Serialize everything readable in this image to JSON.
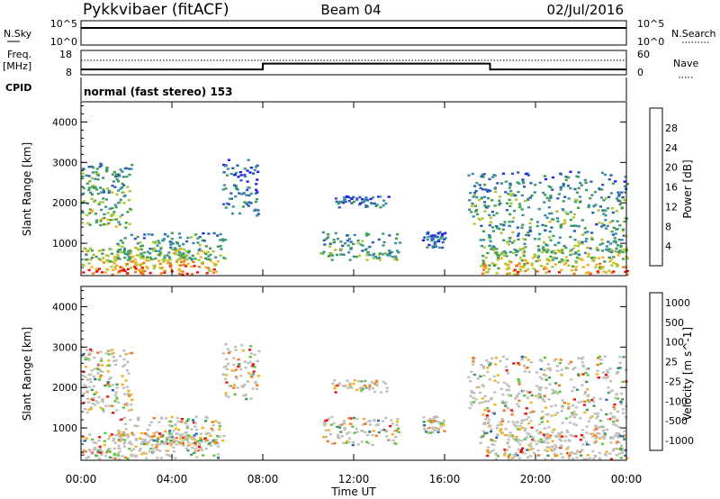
{
  "header": {
    "station": "Pykkvibaer (fitACF)",
    "beam": "Beam 04",
    "date": "02/Jul/2016"
  },
  "status_panels": {
    "nsky_label": "N.Sky",
    "nsky_ticks": [
      "10^5",
      "10^0"
    ],
    "nsearch_label": "N.Search",
    "nsearch_ticks": [
      "10^5",
      "10^0"
    ],
    "freq_label": "Freq.",
    "freq_unit": "[MHz]",
    "freq_ticks": [
      "18",
      "8"
    ],
    "nave_label": "Nave",
    "nave_ticks": [
      "60",
      "0"
    ],
    "cpid_label": "CPID",
    "cpid_text": "normal (fast stereo) 153",
    "freq_steps": [
      {
        "from": 0,
        "to": 8,
        "value": 10.2
      },
      {
        "from": 8,
        "to": 18,
        "value": 12.6
      },
      {
        "from": 18,
        "to": 24,
        "value": 10.2
      }
    ]
  },
  "chart_data": [
    {
      "type": "heatmap",
      "panel": "power",
      "xlabel": "Time UT",
      "ylabel": "Slant Range [km]",
      "xlim": [
        0,
        24
      ],
      "ylim": [
        200,
        4500
      ],
      "x_ticks": [
        "00:00",
        "04:00",
        "08:00",
        "12:00",
        "16:00",
        "20:00",
        "00:00"
      ],
      "y_ticks": [
        1000,
        2000,
        3000,
        4000
      ],
      "colorbar_label": "Power [dB]",
      "colorbar_ticks": [
        4,
        8,
        12,
        16,
        20,
        24,
        28
      ],
      "colorbar_colors": [
        "#1e1ef0",
        "#2a5cb8",
        "#3b8fa0",
        "#3f9e55",
        "#a9c832",
        "#f2b020",
        "#f07818",
        "#ee1010"
      ],
      "regions": [
        {
          "t0": 0.0,
          "t1": 6.0,
          "r0": 250,
          "r1": 900,
          "intensity": 0.9
        },
        {
          "t0": 0.0,
          "t1": 2.2,
          "r0": 1400,
          "r1": 3000,
          "intensity": 0.55
        },
        {
          "t0": 1.5,
          "t1": 6.3,
          "r0": 600,
          "r1": 1300,
          "intensity": 0.5
        },
        {
          "t0": 6.2,
          "t1": 7.8,
          "r0": 1700,
          "r1": 3100,
          "intensity": 0.3
        },
        {
          "t0": 10.5,
          "t1": 14.0,
          "r0": 600,
          "r1": 1300,
          "intensity": 0.45
        },
        {
          "t0": 11.0,
          "t1": 13.5,
          "r0": 1900,
          "r1": 2200,
          "intensity": 0.25
        },
        {
          "t0": 15.0,
          "t1": 16.0,
          "r0": 900,
          "r1": 1300,
          "intensity": 0.2
        },
        {
          "t0": 17.5,
          "t1": 24.0,
          "r0": 250,
          "r1": 900,
          "intensity": 0.8
        },
        {
          "t0": 17.0,
          "t1": 24.0,
          "r0": 1500,
          "r1": 2800,
          "intensity": 0.45
        },
        {
          "t0": 17.5,
          "t1": 24.0,
          "r0": 800,
          "r1": 1500,
          "intensity": 0.5
        }
      ]
    },
    {
      "type": "heatmap",
      "panel": "velocity",
      "xlabel": "Time UT",
      "ylabel": "Slant Range [km]",
      "xlim": [
        0,
        24
      ],
      "ylim": [
        200,
        4500
      ],
      "x_ticks": [
        "00:00",
        "04:00",
        "08:00",
        "12:00",
        "16:00",
        "20:00",
        "00:00"
      ],
      "y_ticks": [
        1000,
        2000,
        3000,
        4000
      ],
      "colorbar_label": "Velocity [m s^-1]",
      "colorbar_ticks": [
        "1000",
        "500",
        "100",
        "25",
        "-25",
        "-100",
        "-500",
        "-1000"
      ],
      "colorbar_colors": [
        "#1e3cc8",
        "#2a6ea0",
        "#3f9b55",
        "#5ac83c",
        "#c0c0b8",
        "#f5b020",
        "#f07818",
        "#ee1010"
      ],
      "regions": [
        {
          "t0": 0.0,
          "t1": 6.0,
          "r0": 250,
          "r1": 900,
          "intensity": 0.9
        },
        {
          "t0": 0.0,
          "t1": 2.2,
          "r0": 1400,
          "r1": 3000,
          "intensity": 0.55
        },
        {
          "t0": 1.5,
          "t1": 6.3,
          "r0": 600,
          "r1": 1300,
          "intensity": 0.5
        },
        {
          "t0": 6.2,
          "t1": 7.8,
          "r0": 1700,
          "r1": 3100,
          "intensity": 0.3
        },
        {
          "t0": 10.5,
          "t1": 14.0,
          "r0": 600,
          "r1": 1300,
          "intensity": 0.45
        },
        {
          "t0": 11.0,
          "t1": 13.5,
          "r0": 1900,
          "r1": 2200,
          "intensity": 0.25
        },
        {
          "t0": 15.0,
          "t1": 16.0,
          "r0": 900,
          "r1": 1300,
          "intensity": 0.2
        },
        {
          "t0": 17.5,
          "t1": 24.0,
          "r0": 250,
          "r1": 900,
          "intensity": 0.8
        },
        {
          "t0": 17.0,
          "t1": 24.0,
          "r0": 1500,
          "r1": 2800,
          "intensity": 0.45
        },
        {
          "t0": 17.5,
          "t1": 24.0,
          "r0": 800,
          "r1": 1500,
          "intensity": 0.5
        }
      ]
    }
  ]
}
